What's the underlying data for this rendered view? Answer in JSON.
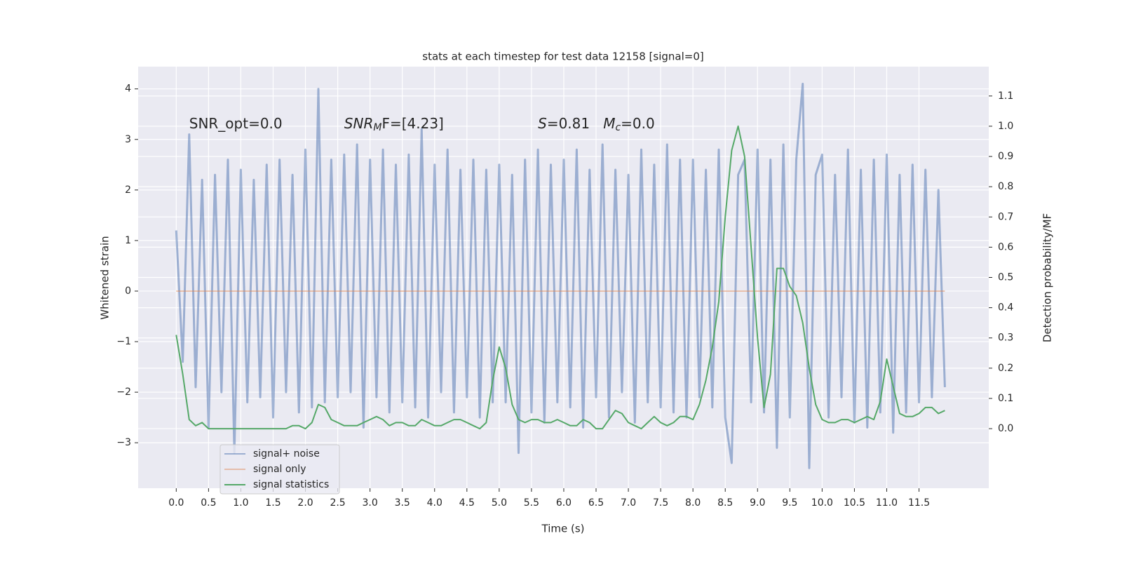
{
  "chart_data": {
    "type": "line",
    "title": "stats at each timestep for test data 12158 [signal=0]",
    "xlabel": "Time (s)",
    "ylabel": "Whitened strain",
    "y2label": "Detection probability/MF",
    "annotations": [
      {
        "parts": [
          "SNR_opt=0.0"
        ],
        "x": 0.2,
        "y": 3.3
      },
      {
        "parts": [
          "SNR",
          "M",
          "F=[4.23]"
        ],
        "x": 2.6,
        "y": 3.3
      },
      {
        "parts": [
          "S",
          "=0.81   ",
          "M",
          "c",
          "=0.0"
        ],
        "x": 5.6,
        "y": 3.3
      }
    ],
    "x": [
      0.0,
      0.1,
      0.2,
      0.3,
      0.4,
      0.5,
      0.6,
      0.7,
      0.8,
      0.9,
      1.0,
      1.1,
      1.2,
      1.3,
      1.4,
      1.5,
      1.6,
      1.7,
      1.8,
      1.9,
      2.0,
      2.1,
      2.2,
      2.3,
      2.4,
      2.5,
      2.6,
      2.7,
      2.8,
      2.9,
      3.0,
      3.1,
      3.2,
      3.3,
      3.4,
      3.5,
      3.6,
      3.7,
      3.8,
      3.9,
      4.0,
      4.1,
      4.2,
      4.3,
      4.4,
      4.5,
      4.6,
      4.7,
      4.8,
      4.9,
      5.0,
      5.1,
      5.2,
      5.3,
      5.4,
      5.5,
      5.6,
      5.7,
      5.8,
      5.9,
      6.0,
      6.1,
      6.2,
      6.3,
      6.4,
      6.5,
      6.6,
      6.7,
      6.8,
      6.9,
      7.0,
      7.1,
      7.2,
      7.3,
      7.4,
      7.5,
      7.6,
      7.7,
      7.8,
      7.9,
      8.0,
      8.1,
      8.2,
      8.3,
      8.4,
      8.5,
      8.6,
      8.7,
      8.8,
      8.9,
      9.0,
      9.1,
      9.2,
      9.3,
      9.4,
      9.5,
      9.6,
      9.7,
      9.8,
      9.9,
      10.0,
      10.1,
      10.2,
      10.3,
      10.4,
      10.5,
      10.6,
      10.7,
      10.8,
      10.9,
      11.0,
      11.1,
      11.2,
      11.3,
      11.4,
      11.5,
      11.6,
      11.7,
      11.8,
      11.9
    ],
    "series": [
      {
        "name": "signal+ noise",
        "color": "#4c72b0",
        "axis": "y",
        "values": [
          1.2,
          -1.4,
          3.1,
          -1.9,
          2.2,
          -2.7,
          2.3,
          -2.0,
          2.6,
          -3.2,
          2.4,
          -2.2,
          2.2,
          -2.1,
          2.5,
          -2.5,
          2.6,
          -2.0,
          2.3,
          -2.4,
          2.8,
          -2.3,
          4.0,
          -2.2,
          2.6,
          -2.1,
          2.7,
          -2.0,
          2.9,
          -2.7,
          2.6,
          -2.1,
          2.8,
          -2.4,
          2.5,
          -2.2,
          2.7,
          -2.3,
          3.2,
          -2.5,
          2.5,
          -2.0,
          2.8,
          -2.4,
          2.4,
          -2.1,
          2.6,
          -2.5,
          2.4,
          -2.2,
          2.5,
          -2.2,
          2.3,
          -3.2,
          2.6,
          -2.4,
          2.8,
          -2.6,
          2.5,
          -2.2,
          2.6,
          -2.3,
          2.8,
          -2.7,
          2.4,
          -2.1,
          2.9,
          -2.5,
          2.4,
          -2.0,
          2.3,
          -2.6,
          2.8,
          -2.2,
          2.5,
          -2.3,
          2.9,
          -2.4,
          2.6,
          -2.5,
          2.6,
          -2.1,
          2.4,
          -2.3,
          2.8,
          -2.5,
          -3.4,
          2.3,
          2.6,
          -2.2,
          2.8,
          -2.4,
          2.6,
          -3.1,
          2.9,
          -2.5,
          2.6,
          4.1,
          -3.5,
          2.3,
          2.7,
          -2.5,
          2.3,
          -2.1,
          2.8,
          -2.6,
          2.4,
          -2.7,
          2.6,
          -2.4,
          2.7,
          -2.8,
          2.3,
          -2.4,
          2.5,
          -2.2,
          2.4,
          -2.1,
          2.0,
          -1.9
        ]
      },
      {
        "name": "signal only",
        "color": "#dd8452",
        "axis": "y",
        "values": [
          0,
          0,
          0,
          0,
          0,
          0,
          0,
          0,
          0,
          0,
          0,
          0,
          0,
          0,
          0,
          0,
          0,
          0,
          0,
          0,
          0,
          0,
          0,
          0,
          0,
          0,
          0,
          0,
          0,
          0,
          0,
          0,
          0,
          0,
          0,
          0,
          0,
          0,
          0,
          0,
          0,
          0,
          0,
          0,
          0,
          0,
          0,
          0,
          0,
          0,
          0,
          0,
          0,
          0,
          0,
          0,
          0,
          0,
          0,
          0,
          0,
          0,
          0,
          0,
          0,
          0,
          0,
          0,
          0,
          0,
          0,
          0,
          0,
          0,
          0,
          0,
          0,
          0,
          0,
          0,
          0,
          0,
          0,
          0,
          0,
          0,
          0,
          0,
          0,
          0,
          0,
          0,
          0,
          0,
          0,
          0,
          0,
          0,
          0,
          0,
          0,
          0,
          0,
          0,
          0,
          0,
          0,
          0,
          0,
          0,
          0,
          0,
          0,
          0,
          0,
          0,
          0,
          0,
          0,
          0
        ]
      },
      {
        "name": "signal statistics",
        "color": "#55a868",
        "axis": "y2",
        "values": [
          0.31,
          0.18,
          0.03,
          0.01,
          0.02,
          0.0,
          0.0,
          0.0,
          0.0,
          0.0,
          0.0,
          0.0,
          0.0,
          0.0,
          0.0,
          0.0,
          0.0,
          0.0,
          0.01,
          0.01,
          0.0,
          0.02,
          0.08,
          0.07,
          0.03,
          0.02,
          0.01,
          0.01,
          0.01,
          0.02,
          0.03,
          0.04,
          0.03,
          0.01,
          0.02,
          0.02,
          0.01,
          0.01,
          0.03,
          0.02,
          0.01,
          0.01,
          0.02,
          0.03,
          0.03,
          0.02,
          0.01,
          0.0,
          0.02,
          0.16,
          0.27,
          0.2,
          0.08,
          0.03,
          0.02,
          0.03,
          0.03,
          0.02,
          0.02,
          0.03,
          0.02,
          0.01,
          0.01,
          0.03,
          0.02,
          0.0,
          0.0,
          0.03,
          0.06,
          0.05,
          0.02,
          0.01,
          0.0,
          0.02,
          0.04,
          0.02,
          0.01,
          0.02,
          0.04,
          0.04,
          0.03,
          0.08,
          0.16,
          0.27,
          0.42,
          0.7,
          0.92,
          1.0,
          0.9,
          0.6,
          0.3,
          0.07,
          0.18,
          0.53,
          0.53,
          0.47,
          0.44,
          0.35,
          0.2,
          0.08,
          0.03,
          0.02,
          0.02,
          0.03,
          0.03,
          0.02,
          0.03,
          0.04,
          0.03,
          0.09,
          0.23,
          0.14,
          0.05,
          0.04,
          0.04,
          0.05,
          0.07,
          0.07,
          0.05,
          0.06
        ]
      }
    ],
    "xlim": [
      -0.59,
      12.58
    ],
    "ylim": [
      -3.9,
      4.44
    ],
    "y2lim": [
      -0.197,
      1.197
    ],
    "xticks": [
      {
        "value": 0,
        "label": "0.0"
      },
      0.5,
      {
        "value": 1,
        "label": "1.0"
      },
      1.5,
      {
        "value": 2,
        "label": "2.0"
      },
      2.5,
      {
        "value": 3,
        "label": "3.0"
      },
      3.5,
      {
        "value": 4,
        "label": "4.0"
      },
      4.5,
      {
        "value": 5,
        "label": "5.0"
      },
      5.5,
      {
        "value": 6,
        "label": "6.0"
      },
      6.5,
      {
        "value": 7,
        "label": "7.0"
      },
      7.5,
      {
        "value": 8,
        "label": "8.0"
      },
      8.5,
      {
        "value": 9,
        "label": "9.0"
      },
      9.5,
      {
        "value": 10,
        "label": "10.0"
      },
      10.5,
      {
        "value": 11,
        "label": "11.0"
      },
      11.5
    ],
    "yticks": [
      {
        "value": -3,
        "label": "−3"
      },
      {
        "value": -2,
        "label": "−2"
      },
      {
        "value": -1,
        "label": "−1"
      },
      0,
      1,
      2,
      3,
      4
    ],
    "y2ticks": [
      {
        "value": 0,
        "label": "0.0"
      },
      0.1,
      0.2,
      0.3,
      0.4,
      0.5,
      0.6,
      0.7,
      0.8,
      0.9,
      {
        "value": 1,
        "label": "1.0"
      },
      1.1
    ],
    "grid": true,
    "legend": "lower left"
  }
}
